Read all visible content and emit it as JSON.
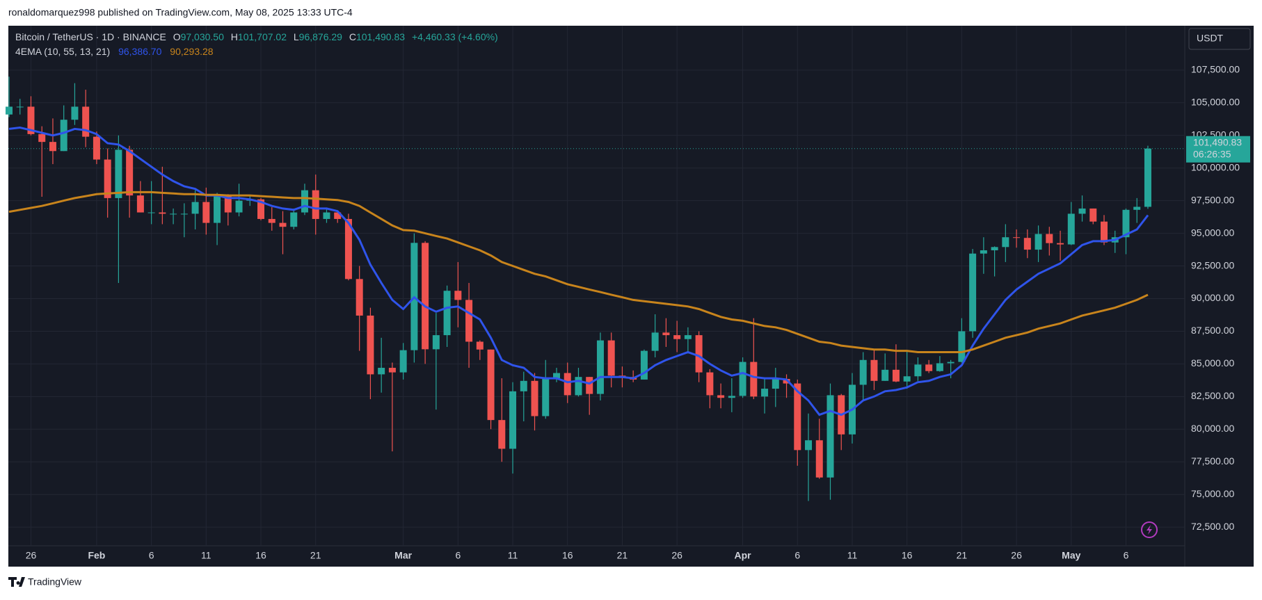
{
  "page": {
    "published": "ronaldomarquez998 published on TradingView.com, May 08, 2025 13:33 UTC-4",
    "brand": "TradingView",
    "currency": "USDT"
  },
  "chart_data": {
    "type": "candlestick",
    "title": "Bitcoin / TetherUS · 1D · BINANCE",
    "ohlc_header": {
      "o": "O",
      "o_value": "97,030.50",
      "h": "H",
      "h_value": "101,707.02",
      "l": "L",
      "l_value": "96,876.29",
      "c": "C",
      "c_value": "101,490.83",
      "change": "+4,460.33 (+4.60%)"
    },
    "up_color": "#26a69a",
    "down_color": "#ef5350",
    "categories": [
      null,
      null,
      "26",
      null,
      null,
      null,
      null,
      null,
      "Feb",
      null,
      null,
      null,
      null,
      "6",
      null,
      null,
      null,
      null,
      "11",
      null,
      null,
      null,
      null,
      "16",
      null,
      null,
      null,
      null,
      "21",
      null,
      null,
      null,
      null,
      null,
      null,
      null,
      "Mar",
      null,
      null,
      null,
      null,
      "6",
      null,
      null,
      null,
      null,
      "11",
      null,
      null,
      null,
      null,
      "16",
      null,
      null,
      null,
      null,
      "21",
      null,
      null,
      null,
      null,
      "26",
      null,
      null,
      null,
      null,
      null,
      "Apr",
      null,
      null,
      null,
      null,
      "6",
      null,
      null,
      null,
      null,
      "11",
      null,
      null,
      null,
      null,
      "16",
      null,
      null,
      null,
      null,
      "21",
      null,
      null,
      null,
      null,
      "26",
      null,
      null,
      null,
      null,
      "May",
      null,
      null,
      null,
      null,
      "6",
      null,
      null
    ],
    "open": [
      104100,
      104700,
      104700,
      102600,
      102000,
      101300,
      103700,
      104700,
      102400,
      100650,
      97700,
      101400,
      97900,
      96600,
      96600,
      96500,
      96500,
      96500,
      97400,
      95800,
      97900,
      96600,
      97500,
      97600,
      96100,
      95800,
      95500,
      96600,
      98300,
      96100,
      96600,
      96100,
      91500,
      88700,
      84200,
      84700,
      84350,
      86050,
      94270,
      86120,
      87200,
      90600,
      89900,
      86700,
      86100,
      80700,
      78500,
      82900,
      83700,
      81000,
      83900,
      84300,
      82600,
      84000,
      82700,
      86800,
      84100,
      84000,
      83800,
      86000,
      87400,
      87200,
      86900,
      87200,
      84350,
      82600,
      82400,
      82550,
      85150,
      82500,
      83100,
      83850,
      83500,
      78400,
      79150,
      76300,
      82600,
      79600,
      83400,
      85300,
      83700,
      84550,
      83650,
      84050,
      84950,
      84450,
      85050,
      85150,
      87500,
      93450,
      93700,
      93950,
      94700,
      94650,
      93750,
      94950,
      94250,
      94150,
      96500,
      96900,
      95900,
      94300,
      94700,
      96800,
      97030.5
    ],
    "high": [
      107000,
      105300,
      105500,
      103200,
      103800,
      104800,
      106500,
      106000,
      102800,
      101500,
      102500,
      101700,
      99000,
      99000,
      100100,
      96900,
      97300,
      98300,
      98500,
      98100,
      98000,
      98800,
      97900,
      97700,
      97000,
      96700,
      96900,
      98800,
      99500,
      96900,
      96700,
      96500,
      92500,
      89300,
      87000,
      85100,
      86600,
      95000,
      94400,
      88900,
      91000,
      92800,
      91200,
      86800,
      86100,
      83900,
      83600,
      84400,
      84300,
      85300,
      84700,
      85100,
      84700,
      84000,
      87400,
      87400,
      84800,
      84500,
      86100,
      88800,
      88500,
      88300,
      87800,
      87500,
      84600,
      83500,
      83900,
      85500,
      88500,
      83900,
      84700,
      84200,
      83800,
      81200,
      80800,
      83500,
      82700,
      84300,
      85900,
      86100,
      85800,
      86500,
      86000,
      85500,
      85300,
      85600,
      85300,
      88500,
      93800,
      94700,
      94000,
      95700,
      95300,
      95300,
      95600,
      95500,
      95200,
      97400,
      97900,
      96900,
      96400,
      95200,
      96900,
      97700,
      101707.02
    ],
    "low": [
      103900,
      104100,
      102500,
      97800,
      100300,
      101300,
      103300,
      101600,
      100300,
      96200,
      91200,
      96200,
      96600,
      95700,
      95700,
      95700,
      94700,
      95300,
      94900,
      94100,
      95600,
      96300,
      97100,
      96000,
      95200,
      93400,
      95300,
      96400,
      94900,
      95800,
      95800,
      91400,
      86000,
      82300,
      82800,
      78300,
      83800,
      85100,
      85000,
      81500,
      86300,
      87800,
      84700,
      85300,
      80000,
      77500,
      76600,
      80600,
      79900,
      80800,
      83600,
      82000,
      82500,
      81100,
      82200,
      83200,
      83200,
      83600,
      83800,
      85500,
      86300,
      85900,
      85800,
      83600,
      81600,
      81600,
      81300,
      82400,
      82300,
      81200,
      81700,
      82400,
      77200,
      74500,
      76200,
      74600,
      78400,
      78900,
      82200,
      83000,
      83700,
      83600,
      83100,
      83700,
      84300,
      84400,
      83900,
      85100,
      87000,
      91900,
      91700,
      92800,
      93900,
      93100,
      92800,
      93300,
      92900,
      94100,
      95900,
      95700,
      94100,
      93500,
      93400,
      95800,
      96876.29
    ],
    "close": [
      104700,
      104700,
      102600,
      102000,
      101300,
      103700,
      104700,
      102400,
      100650,
      97700,
      101400,
      97900,
      96600,
      96600,
      96500,
      96500,
      96500,
      97400,
      95800,
      97900,
      96600,
      97500,
      97600,
      96100,
      95800,
      95500,
      96600,
      98300,
      96100,
      96600,
      96100,
      91500,
      88700,
      84200,
      84700,
      84350,
      86050,
      94270,
      86120,
      87200,
      90600,
      89900,
      86700,
      86100,
      80700,
      78500,
      82900,
      83700,
      81000,
      83900,
      84300,
      82600,
      84000,
      82700,
      86800,
      84100,
      84000,
      83800,
      86000,
      87400,
      87200,
      86900,
      87200,
      84350,
      82600,
      82400,
      82550,
      85150,
      82500,
      83100,
      83850,
      83500,
      78400,
      79150,
      76300,
      82600,
      79600,
      83400,
      85300,
      83700,
      84550,
      83650,
      84050,
      84950,
      84450,
      85050,
      85150,
      87500,
      93450,
      93700,
      93950,
      94700,
      94650,
      93750,
      94950,
      94250,
      94150,
      96500,
      96900,
      95900,
      94300,
      94700,
      96800,
      97030.5,
      101490.83
    ],
    "last_price_label": "101,490.83",
    "countdown": "06:26:35",
    "indicator": {
      "label": "4EMA (10, 55, 13, 21)",
      "series": [
        {
          "color": "#2f54eb",
          "last_label": "96,386.70",
          "values": [
            103000,
            103100,
            102900,
            102700,
            102500,
            102700,
            103000,
            102900,
            102600,
            101900,
            101800,
            101300,
            100700,
            100100,
            99500,
            99000,
            98600,
            98400,
            97900,
            97900,
            97700,
            97700,
            97600,
            97400,
            97100,
            96900,
            96800,
            97100,
            96900,
            96900,
            96700,
            95800,
            94500,
            92600,
            91200,
            89900,
            89200,
            90100,
            89400,
            89000,
            89300,
            89400,
            88900,
            88400,
            87000,
            85300,
            84900,
            84700,
            84000,
            83900,
            83900,
            83600,
            83700,
            83500,
            84000,
            84000,
            84000,
            83900,
            84300,
            84900,
            85300,
            85600,
            85900,
            85600,
            85000,
            84500,
            84100,
            84300,
            84000,
            83900,
            83900,
            83800,
            82900,
            82200,
            81100,
            81400,
            81100,
            81500,
            82200,
            82500,
            82900,
            83000,
            83200,
            83600,
            83700,
            84000,
            84200,
            84900,
            86400,
            87700,
            88800,
            89900,
            90700,
            91300,
            91900,
            92300,
            92700,
            93400,
            94100,
            94400,
            94400,
            94500,
            94900,
            95300,
            96386.7
          ]
        },
        {
          "color": "#c8841c",
          "last_label": "90,293.28",
          "values": [
            96650,
            96800,
            96950,
            97100,
            97300,
            97500,
            97700,
            97850,
            98000,
            98050,
            98100,
            98150,
            98150,
            98150,
            98100,
            98050,
            98000,
            98000,
            97950,
            97950,
            97900,
            97900,
            97900,
            97850,
            97800,
            97750,
            97700,
            97700,
            97650,
            97600,
            97550,
            97400,
            97100,
            96600,
            96100,
            95600,
            95250,
            95200,
            95000,
            94800,
            94600,
            94300,
            94000,
            93700,
            93300,
            92800,
            92500,
            92200,
            91900,
            91700,
            91400,
            91100,
            90900,
            90700,
            90500,
            90300,
            90100,
            89900,
            89800,
            89700,
            89600,
            89500,
            89400,
            89200,
            88900,
            88600,
            88400,
            88300,
            88100,
            87900,
            87800,
            87600,
            87300,
            87000,
            86700,
            86600,
            86400,
            86300,
            86200,
            86100,
            86100,
            86000,
            86000,
            85900,
            85900,
            85900,
            85900,
            85900,
            86100,
            86400,
            86700,
            87000,
            87200,
            87400,
            87700,
            87900,
            88100,
            88400,
            88700,
            88900,
            89100,
            89300,
            89600,
            89900,
            90293.28
          ]
        }
      ]
    },
    "ylim": [
      71070,
      110900
    ],
    "yticks": [
      {
        "value": 72500,
        "label": "72,500.00"
      },
      {
        "value": 75000,
        "label": "75,000.00"
      },
      {
        "value": 77500,
        "label": "77,500.00"
      },
      {
        "value": 80000,
        "label": "80,000.00"
      },
      {
        "value": 82500,
        "label": "82,500.00"
      },
      {
        "value": 85000,
        "label": "85,000.00"
      },
      {
        "value": 87500,
        "label": "87,500.00"
      },
      {
        "value": 90000,
        "label": "90,000.00"
      },
      {
        "value": 92500,
        "label": "92,500.00"
      },
      {
        "value": 95000,
        "label": "95,000.00"
      },
      {
        "value": 97500,
        "label": "97,500.00"
      },
      {
        "value": 100000,
        "label": "100,000.00"
      },
      {
        "value": 102500,
        "label": "102,500.00"
      },
      {
        "value": 105000,
        "label": "105,000.00"
      },
      {
        "value": 107500,
        "label": "107,500.00"
      }
    ],
    "grid": true
  }
}
